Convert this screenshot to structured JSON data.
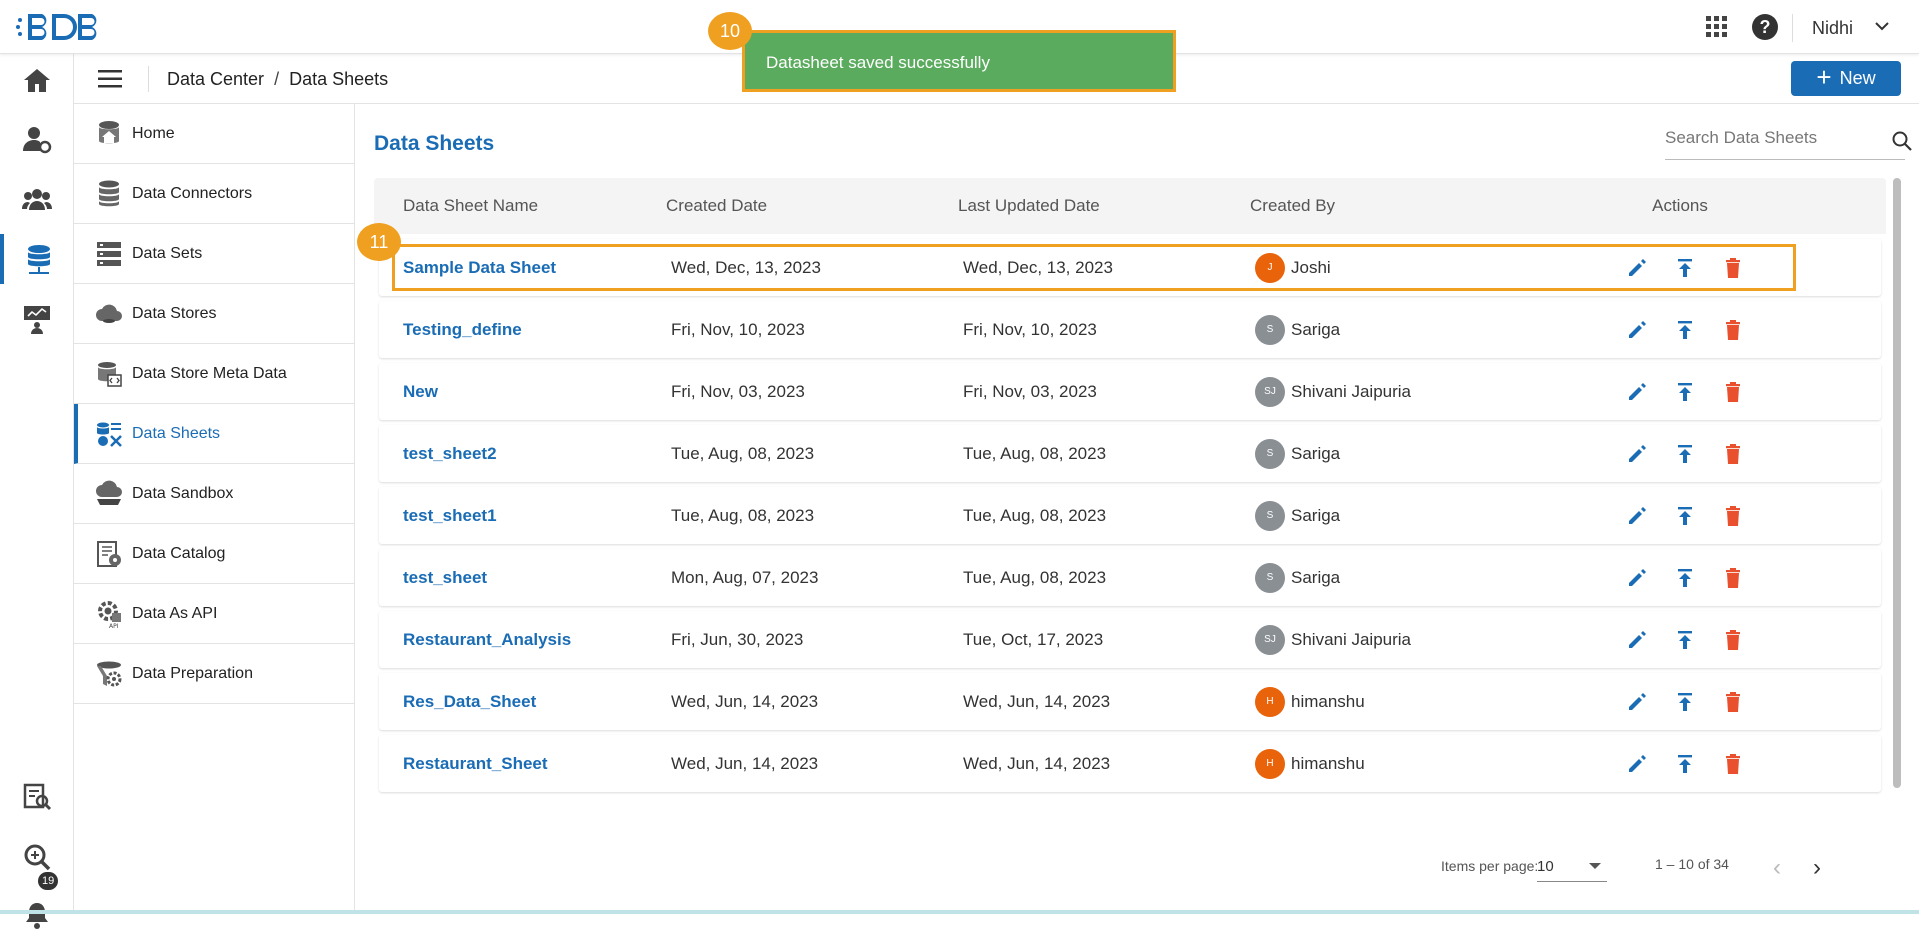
{
  "topbar": {
    "user_name": "Nidhi"
  },
  "rail": {
    "notification_count": "19"
  },
  "breadcrumb": {
    "parent": "Data Center",
    "current": "Data Sheets"
  },
  "actions": {
    "new_label": "New"
  },
  "sidemenu": {
    "items": [
      {
        "label": "Home",
        "icon": "home-db-icon"
      },
      {
        "label": "Data Connectors",
        "icon": "database-icon"
      },
      {
        "label": "Data Sets",
        "icon": "server-stack-icon"
      },
      {
        "label": "Data Stores",
        "icon": "cloud-store-icon"
      },
      {
        "label": "Data Store Meta Data",
        "icon": "meta-data-icon"
      },
      {
        "label": "Data Sheets",
        "icon": "data-sheets-icon",
        "active": true
      },
      {
        "label": "Data Sandbox",
        "icon": "sandbox-icon"
      },
      {
        "label": "Data Catalog",
        "icon": "catalog-icon"
      },
      {
        "label": "Data As API",
        "icon": "api-gear-icon"
      },
      {
        "label": "Data Preparation",
        "icon": "preparation-icon"
      }
    ]
  },
  "main": {
    "title": "Data Sheets",
    "search_placeholder": "Search Data Sheets",
    "columns": [
      "Data Sheet Name",
      "Created Date",
      "Last Updated Date",
      "Created By",
      "Actions"
    ],
    "rows": [
      {
        "name": "Sample Data Sheet",
        "created": "Wed, Dec, 13, 2023",
        "updated": "Wed, Dec, 13, 2023",
        "initials": "J",
        "user": "Joshi",
        "avatar_color": "#e8630a"
      },
      {
        "name": "Testing_define",
        "created": "Fri, Nov, 10, 2023",
        "updated": "Fri, Nov, 10, 2023",
        "initials": "S",
        "user": "Sariga",
        "avatar_color": "#8a8f94"
      },
      {
        "name": "New",
        "created": "Fri, Nov, 03, 2023",
        "updated": "Fri, Nov, 03, 2023",
        "initials": "SJ",
        "user": "Shivani Jaipuria",
        "avatar_color": "#8a8f94"
      },
      {
        "name": "test_sheet2",
        "created": "Tue, Aug, 08, 2023",
        "updated": "Tue, Aug, 08, 2023",
        "initials": "S",
        "user": "Sariga",
        "avatar_color": "#8a8f94"
      },
      {
        "name": "test_sheet1",
        "created": "Tue, Aug, 08, 2023",
        "updated": "Tue, Aug, 08, 2023",
        "initials": "S",
        "user": "Sariga",
        "avatar_color": "#8a8f94"
      },
      {
        "name": "test_sheet",
        "created": "Mon, Aug, 07, 2023",
        "updated": "Tue, Aug, 08, 2023",
        "initials": "S",
        "user": "Sariga",
        "avatar_color": "#8a8f94"
      },
      {
        "name": "Restaurant_Analysis",
        "created": "Fri, Jun, 30, 2023",
        "updated": "Tue, Oct, 17, 2023",
        "initials": "SJ",
        "user": "Shivani Jaipuria",
        "avatar_color": "#8a8f94"
      },
      {
        "name": "Res_Data_Sheet",
        "created": "Wed, Jun, 14, 2023",
        "updated": "Wed, Jun, 14, 2023",
        "initials": "H",
        "user": "himanshu",
        "avatar_color": "#e8630a"
      },
      {
        "name": "Restaurant_Sheet",
        "created": "Wed, Jun, 14, 2023",
        "updated": "Wed, Jun, 14, 2023",
        "initials": "H",
        "user": "himanshu",
        "avatar_color": "#e8630a"
      }
    ]
  },
  "pagination": {
    "items_per_page_label": "Items per page:",
    "items_per_page": "10",
    "range": "1 – 10 of 34"
  },
  "toast": {
    "message": "Datasheet saved successfully"
  },
  "annotations": {
    "marker_toast": "10",
    "marker_row": "11"
  },
  "colors": {
    "accent": "#1a6cb5",
    "danger": "#e8502e",
    "annotation": "#f0a020",
    "success": "#5aab5e"
  }
}
